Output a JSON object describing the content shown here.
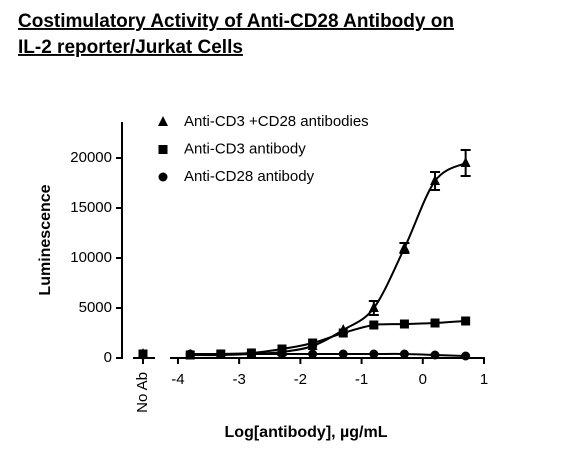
{
  "chart_data": {
    "type": "scatter",
    "title": [
      "Costimulatory Activity of Anti-CD28 Antibody on",
      "IL-2 reporter/Jurkat Cells"
    ],
    "x_label": "Log[antibody], µg/mL",
    "y_label": "Luminescence",
    "baseline_label": "No Ab",
    "x": [
      0.7,
      0.2,
      -0.3,
      -0.8,
      -1.3,
      -1.8,
      -2.3,
      -2.8,
      -3.3,
      -3.8
    ],
    "series": [
      {
        "name": "Anti-CD3 +CD28 antibodies",
        "marker": "triangle",
        "color": "#000000",
        "values": [
          19500,
          17700,
          11000,
          5000,
          2800,
          1200,
          600,
          400,
          300,
          300
        ],
        "errors": [
          1300,
          900,
          500,
          700,
          null,
          null,
          null,
          null,
          null,
          null
        ],
        "baseline_value": 400
      },
      {
        "name": "Anti-CD3 antibody",
        "marker": "square",
        "color": "#000000",
        "values": [
          3700,
          3500,
          3400,
          3300,
          2500,
          1500,
          900,
          500,
          400,
          300
        ],
        "errors": [
          null,
          null,
          null,
          null,
          null,
          null,
          null,
          null,
          null,
          null
        ],
        "baseline_value": 400
      },
      {
        "name": "Anti-CD28 antibody",
        "marker": "circle",
        "color": "#000000",
        "values": [
          200,
          300,
          400,
          400,
          400,
          400,
          400,
          400,
          400,
          400
        ],
        "errors": [
          null,
          null,
          null,
          null,
          null,
          null,
          null,
          null,
          null,
          null
        ],
        "baseline_value": 300
      }
    ],
    "xlim": [
      -4.13,
      1
    ],
    "ylim": [
      0,
      23600
    ],
    "xticks": [
      -4,
      -3,
      -2,
      -1,
      0,
      1
    ],
    "yticks": [
      0,
      5000,
      10000,
      15000,
      20000
    ]
  }
}
